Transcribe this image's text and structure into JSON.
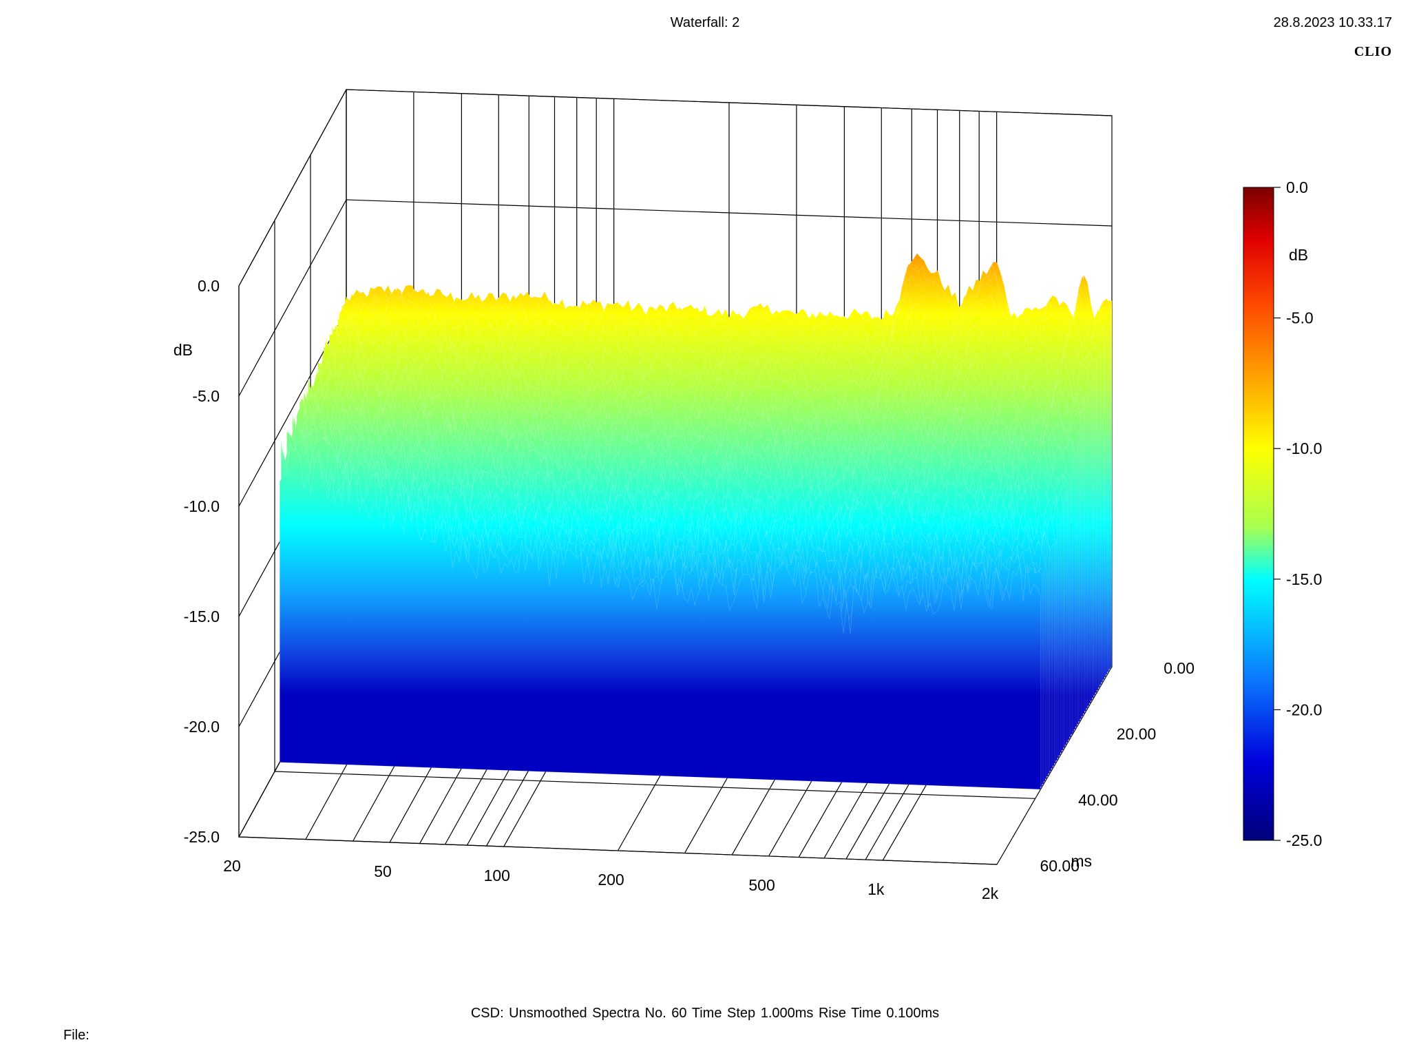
{
  "header": {
    "title": "Waterfall: 2",
    "datetime": "28.8.2023 10.33.17",
    "brand": "CLIO"
  },
  "footer": {
    "text": "CSD:   Unsmoothed   Spectra No. 60   Time Step 1.000ms   Rise Time 0.100ms",
    "file_label": "File:"
  },
  "chart_data": {
    "type": "waterfall",
    "title": "Waterfall: 2",
    "x_axis": {
      "scale": "log",
      "range": [
        20,
        2000
      ],
      "ticks": [
        "20",
        "50",
        "100",
        "200",
        "500",
        "1k",
        "2k"
      ],
      "tick_values": [
        20,
        50,
        100,
        200,
        500,
        1000,
        2000
      ]
    },
    "y_axis": {
      "label": "dB",
      "range": [
        -25,
        0
      ],
      "ticks": [
        "0.0",
        "-5.0",
        "-10.0",
        "-15.0",
        "-20.0",
        "-25.0"
      ],
      "tick_values": [
        0,
        -5,
        -10,
        -15,
        -20,
        -25
      ]
    },
    "z_axis": {
      "label": "ms",
      "range": [
        0,
        60
      ],
      "ticks": [
        "0.00",
        "20.00",
        "40.00",
        "60.00"
      ],
      "tick_values": [
        0,
        20,
        40,
        60
      ]
    },
    "colorbar": {
      "label": "dB",
      "ticks": [
        "0.0",
        "-5.0",
        "-10.0",
        "-15.0",
        "-20.0",
        "-25.0"
      ],
      "tick_values": [
        0,
        -5,
        -10,
        -15,
        -20,
        -25
      ],
      "colors": [
        "#7a0000",
        "#ff2a00",
        "#ff9900",
        "#ffff00",
        "#a8ff50",
        "#00ffff",
        "#0a7cff",
        "#0000dd",
        "#00007a"
      ]
    },
    "spectra_count": 60,
    "time_step_ms": 1.0,
    "rise_time_ms": 0.1,
    "smoothing": "Unsmoothed",
    "front_spectrum": {
      "frequency_hz": [
        20,
        25,
        30,
        40,
        50,
        60,
        70,
        80,
        100,
        120,
        150,
        200,
        250,
        300,
        400,
        500,
        550,
        600,
        700,
        800,
        900,
        1000,
        1100,
        1200,
        1300,
        1400,
        1500,
        1600,
        1700,
        1800,
        1900,
        2000
      ],
      "level_db": [
        -9.5,
        -9.0,
        -9.0,
        -9.3,
        -9.2,
        -9.0,
        -9.2,
        -9.4,
        -9.3,
        -9.5,
        -9.4,
        -9.6,
        -9.3,
        -9.5,
        -9.4,
        -9.5,
        -9.0,
        -6.5,
        -7.5,
        -8.8,
        -7.6,
        -6.8,
        -9.3,
        -8.8,
        -9.0,
        -8.2,
        -8.8,
        -9.2,
        -6.8,
        -9.5,
        -8.5,
        -8.2
      ]
    },
    "last_spectrum": {
      "frequency_hz": [
        20,
        30,
        50,
        60,
        100,
        150,
        200,
        300,
        500,
        600,
        700,
        1000,
        1500,
        2000
      ],
      "level_db": [
        -11.5,
        -12.2,
        -14.5,
        -15.3,
        -15.5,
        -16.0,
        -16.5,
        -16.4,
        -16.0,
        -17.5,
        -16.6,
        -16.2,
        -16.0,
        -15.5
      ]
    }
  }
}
